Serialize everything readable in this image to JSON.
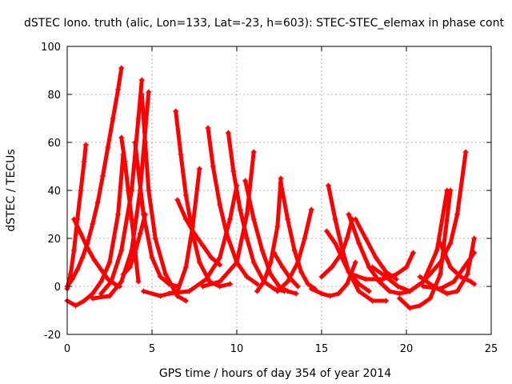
{
  "chart_data": {
    "type": "scatter",
    "title": "dSTEC Iono. truth (alic, Lon=133, Lat=-23, h=603): STEC-STEC_elemax in phase cont",
    "xlabel": "GPS time / hours of day 354 of year 2014",
    "ylabel": "dSTEC  / TECUs",
    "xlim": [
      0,
      25
    ],
    "ylim": [
      -20,
      100
    ],
    "xticks": [
      0,
      5,
      10,
      15,
      20,
      25
    ],
    "yticks": [
      -20,
      0,
      20,
      40,
      60,
      80,
      100
    ],
    "grid": true,
    "legend": "none",
    "marker": "plus",
    "color": "#ff0000",
    "series": [
      {
        "x": [
          0.0,
          0.3,
          0.6,
          0.9,
          1.2,
          1.5,
          1.8,
          2.1,
          2.4,
          2.7,
          3.0,
          3.2
        ],
        "y": [
          0,
          3,
          7,
          12,
          18,
          26,
          35,
          46,
          58,
          70,
          82,
          91
        ]
      },
      {
        "x": [
          0.0,
          0.2,
          0.4,
          0.6,
          0.8,
          1.0,
          1.1
        ],
        "y": [
          -1,
          5,
          15,
          28,
          40,
          52,
          59
        ]
      },
      {
        "x": [
          0.4,
          0.8,
          1.2,
          1.6,
          2.0,
          2.4,
          2.8,
          3.1
        ],
        "y": [
          28,
          22,
          16,
          11,
          7,
          3,
          1,
          0
        ]
      },
      {
        "x": [
          0.0,
          0.5,
          1.0,
          1.5,
          2.0,
          2.5,
          3.0,
          3.3
        ],
        "y": [
          -6,
          -8,
          -6,
          -3,
          2,
          10,
          30,
          55
        ]
      },
      {
        "x": [
          3.2,
          3.4,
          3.6,
          3.8,
          4.0,
          4.2
        ],
        "y": [
          62,
          52,
          40,
          28,
          15,
          2
        ]
      },
      {
        "x": [
          2.0,
          2.6,
          3.2,
          3.8,
          4.2,
          4.4
        ],
        "y": [
          -3,
          2,
          15,
          40,
          70,
          86
        ]
      },
      {
        "x": [
          4.4,
          4.6,
          4.8,
          5.2,
          5.8,
          6.5,
          7.0
        ],
        "y": [
          80,
          60,
          40,
          20,
          5,
          -4,
          -6
        ]
      },
      {
        "x": [
          1.5,
          2.5,
          3.2,
          3.8,
          4.3,
          4.8
        ],
        "y": [
          -5,
          -4,
          2,
          15,
          40,
          81
        ]
      },
      {
        "x": [
          4.0,
          4.5,
          5.0,
          5.5,
          6.0,
          6.5
        ],
        "y": [
          60,
          30,
          12,
          4,
          1,
          0
        ]
      },
      {
        "x": [
          3.3,
          3.7,
          4.0,
          4.3,
          4.6
        ],
        "y": [
          5,
          8,
          14,
          22,
          30
        ]
      },
      {
        "x": [
          6.4,
          6.7,
          7.0,
          7.4,
          7.8,
          8.4,
          9.0,
          9.6
        ],
        "y": [
          73,
          55,
          38,
          22,
          10,
          2,
          0,
          1
        ]
      },
      {
        "x": [
          4.5,
          5.5,
          6.5,
          7.0,
          7.4,
          7.8
        ],
        "y": [
          -2,
          -4,
          -2,
          8,
          25,
          49
        ]
      },
      {
        "x": [
          6.5,
          7.0,
          7.5,
          8.0,
          8.5,
          9.0
        ],
        "y": [
          36,
          28,
          22,
          17,
          12,
          9
        ]
      },
      {
        "x": [
          8.3,
          8.6,
          9.0,
          9.4,
          10.0,
          10.6,
          11.2
        ],
        "y": [
          66,
          50,
          34,
          22,
          10,
          4,
          1
        ]
      },
      {
        "x": [
          6.0,
          7.2,
          8.2,
          9.0,
          9.6,
          10.0
        ],
        "y": [
          -3,
          -2,
          3,
          12,
          28,
          42
        ]
      },
      {
        "x": [
          9.5,
          9.8,
          10.2,
          10.6,
          11.0,
          11.6,
          12.2,
          12.8
        ],
        "y": [
          64,
          48,
          32,
          20,
          10,
          2,
          -1,
          -2
        ]
      },
      {
        "x": [
          8.0,
          9.0,
          10.0,
          10.6,
          11.0
        ],
        "y": [
          0,
          2,
          10,
          30,
          56
        ]
      },
      {
        "x": [
          10.5,
          11.0,
          11.5,
          12.0,
          12.5,
          13.0,
          13.5
        ],
        "y": [
          44,
          28,
          15,
          5,
          0,
          -2,
          -3
        ]
      },
      {
        "x": [
          11.2,
          11.6,
          12.0,
          12.4,
          12.6
        ],
        "y": [
          -2,
          2,
          10,
          25,
          45
        ]
      },
      {
        "x": [
          12.6,
          13.0,
          13.4,
          13.8,
          14.2,
          14.6
        ],
        "y": [
          43,
          28,
          15,
          6,
          1,
          -1
        ]
      },
      {
        "x": [
          12.4,
          13.0,
          13.6,
          14.0,
          14.4
        ],
        "y": [
          -2,
          2,
          10,
          20,
          32
        ]
      },
      {
        "x": [
          12.2,
          12.7,
          13.2,
          13.6
        ],
        "y": [
          14,
          8,
          3,
          0
        ]
      },
      {
        "x": [
          14.4,
          15.0,
          15.5,
          16.0,
          16.5,
          17.0
        ],
        "y": [
          -1,
          -3,
          -4,
          -3,
          1,
          10
        ]
      },
      {
        "x": [
          15.4,
          15.8,
          16.2,
          16.6,
          17.2,
          18.0,
          18.8
        ],
        "y": [
          42,
          28,
          16,
          6,
          -2,
          -6,
          -6
        ]
      },
      {
        "x": [
          15.3,
          15.8,
          16.2,
          16.6,
          17.2,
          17.8
        ],
        "y": [
          23,
          18,
          12,
          6,
          1,
          -2
        ]
      },
      {
        "x": [
          15.0,
          15.6,
          16.2,
          16.5,
          16.8
        ],
        "y": [
          4,
          8,
          14,
          20,
          28
        ]
      },
      {
        "x": [
          16.6,
          17.2,
          17.8,
          18.4,
          19.0,
          19.6,
          20.2
        ],
        "y": [
          30,
          18,
          8,
          2,
          -2,
          -3,
          -2
        ]
      },
      {
        "x": [
          17.0,
          17.6,
          18.2,
          18.8,
          19.4
        ],
        "y": [
          28,
          20,
          12,
          6,
          3
        ]
      },
      {
        "x": [
          16.8,
          17.6,
          18.6,
          19.4,
          20.0,
          20.4
        ],
        "y": [
          5,
          3,
          3,
          5,
          8,
          14
        ]
      },
      {
        "x": [
          18.0,
          18.8,
          19.5,
          20.2,
          21.0,
          21.8,
          22.4
        ],
        "y": [
          8,
          4,
          0,
          -2,
          2,
          15,
          40
        ]
      },
      {
        "x": [
          19.6,
          20.2,
          20.8,
          21.4,
          22.0,
          22.6
        ],
        "y": [
          -5,
          -9,
          -8,
          -5,
          5,
          40
        ]
      },
      {
        "x": [
          20.2,
          21.0,
          22.0,
          22.6,
          23.0,
          23.5
        ],
        "y": [
          -2,
          2,
          10,
          18,
          30,
          56
        ]
      },
      {
        "x": [
          20.8,
          21.6,
          22.4,
          23.0,
          23.6,
          24.0
        ],
        "y": [
          4,
          0,
          -3,
          -2,
          5,
          20
        ]
      },
      {
        "x": [
          22.0,
          22.6,
          23.2,
          23.8,
          24.0
        ],
        "y": [
          18,
          8,
          4,
          2,
          1
        ]
      },
      {
        "x": [
          21.0,
          22.0,
          22.8,
          23.4,
          24.0
        ],
        "y": [
          0,
          -1,
          2,
          8,
          14
        ]
      }
    ]
  }
}
